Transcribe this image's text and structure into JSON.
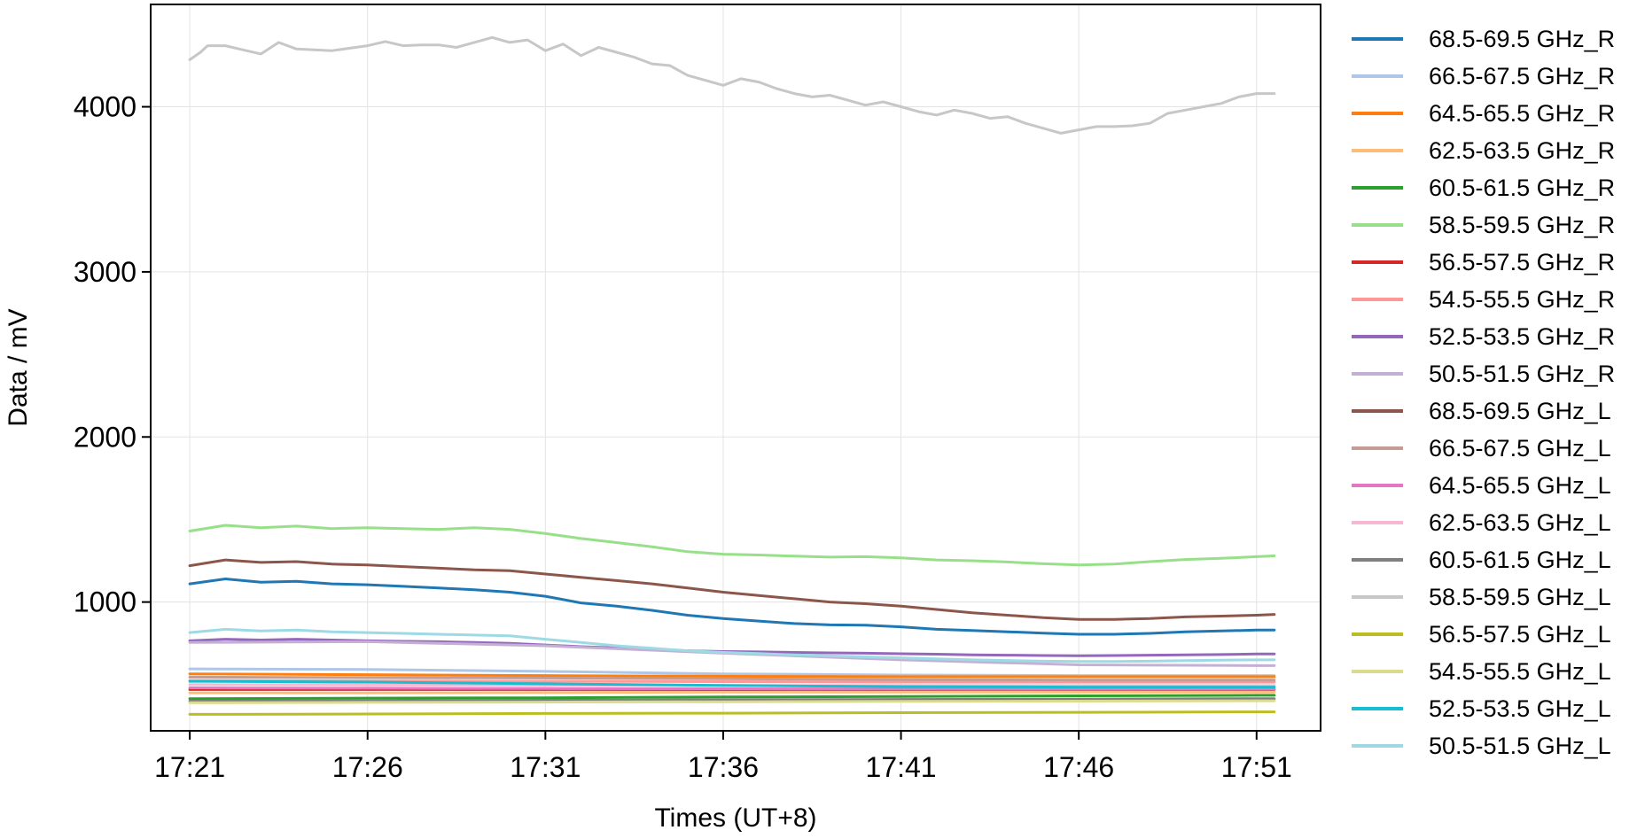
{
  "chart_data": {
    "type": "line",
    "title": "",
    "xlabel": "Times (UT+8)",
    "ylabel": "Data / mV",
    "x_ticks": [
      "17:21",
      "17:26",
      "17:31",
      "17:36",
      "17:41",
      "17:46",
      "17:51"
    ],
    "x_tick_minutes": [
      0,
      5,
      10,
      15,
      20,
      25,
      30
    ],
    "xlim_minutes": [
      -1.1,
      31.8
    ],
    "x_start_minutes": 0,
    "x_end_minutes": 30.5,
    "y_ticks": [
      1000,
      2000,
      3000,
      4000
    ],
    "ylim": [
      220,
      4620
    ],
    "grid": true,
    "legend_position": "outside-right",
    "series": [
      {
        "name": "68.5-69.5 GHz_R",
        "color": "#1f77b4",
        "x": [
          0,
          1,
          2,
          3,
          4,
          5,
          6,
          7,
          8,
          9,
          10,
          11,
          12,
          13,
          14,
          15,
          16,
          17,
          18,
          19,
          20,
          21,
          22,
          23,
          24,
          25,
          26,
          27,
          28,
          29,
          30,
          30.5
        ],
        "y": [
          1110,
          1140,
          1120,
          1125,
          1110,
          1105,
          1095,
          1085,
          1075,
          1060,
          1035,
          995,
          975,
          950,
          920,
          900,
          885,
          870,
          862,
          860,
          850,
          835,
          828,
          820,
          812,
          805,
          805,
          810,
          820,
          825,
          830,
          830
        ]
      },
      {
        "name": "66.5-67.5 GHz_R",
        "color": "#aec7e8",
        "x": [
          0,
          5,
          10,
          15,
          20,
          25,
          30,
          30.5
        ],
        "y": [
          595,
          592,
          580,
          565,
          558,
          555,
          555,
          555
        ]
      },
      {
        "name": "64.5-65.5 GHz_R",
        "color": "#ff7f0e",
        "x": [
          0,
          5,
          10,
          15,
          20,
          25,
          30,
          30.5
        ],
        "y": [
          565,
          560,
          555,
          550,
          548,
          548,
          548,
          548
        ]
      },
      {
        "name": "62.5-63.5 GHz_R",
        "color": "#ffbb78",
        "x": [
          0,
          5,
          10,
          15,
          20,
          25,
          30,
          30.5
        ],
        "y": [
          450,
          450,
          452,
          455,
          455,
          455,
          455,
          455
        ]
      },
      {
        "name": "60.5-61.5 GHz_R",
        "color": "#2ca02c",
        "x": [
          0,
          5,
          10,
          15,
          20,
          25,
          30,
          30.5
        ],
        "y": [
          415,
          418,
          420,
          425,
          428,
          432,
          435,
          435
        ]
      },
      {
        "name": "58.5-59.5 GHz_R",
        "color": "#98df8a",
        "x": [
          0,
          1,
          2,
          3,
          4,
          5,
          6,
          7,
          8,
          9,
          10,
          11,
          12,
          13,
          14,
          15,
          16,
          17,
          18,
          19,
          20,
          21,
          22,
          23,
          24,
          25,
          26,
          27,
          28,
          29,
          30,
          30.5
        ],
        "y": [
          1430,
          1465,
          1450,
          1460,
          1445,
          1450,
          1445,
          1440,
          1450,
          1440,
          1415,
          1385,
          1360,
          1335,
          1305,
          1290,
          1285,
          1278,
          1272,
          1275,
          1268,
          1255,
          1250,
          1243,
          1232,
          1225,
          1230,
          1245,
          1258,
          1265,
          1275,
          1280
        ]
      },
      {
        "name": "56.5-57.5 GHz_R",
        "color": "#d62728",
        "x": [
          0,
          5,
          10,
          15,
          20,
          25,
          30,
          30.5
        ],
        "y": [
          470,
          470,
          470,
          470,
          470,
          470,
          470,
          470
        ]
      },
      {
        "name": "54.5-55.5 GHz_R",
        "color": "#ff9896",
        "x": [
          0,
          5,
          10,
          15,
          20,
          25,
          30,
          30.5
        ],
        "y": [
          525,
          522,
          520,
          518,
          515,
          515,
          515,
          515
        ]
      },
      {
        "name": "52.5-53.5 GHz_R",
        "color": "#9467bd",
        "x": [
          0,
          1,
          2,
          3,
          4,
          5,
          6,
          7,
          8,
          9,
          10,
          11,
          12,
          13,
          14,
          15,
          16,
          17,
          18,
          19,
          20,
          21,
          22,
          23,
          24,
          25,
          26,
          27,
          28,
          29,
          30,
          30.5
        ],
        "y": [
          765,
          775,
          770,
          775,
          770,
          765,
          762,
          760,
          755,
          750,
          740,
          730,
          722,
          712,
          705,
          700,
          698,
          695,
          692,
          690,
          687,
          684,
          680,
          678,
          676,
          675,
          676,
          678,
          680,
          682,
          685,
          685
        ]
      },
      {
        "name": "50.5-51.5 GHz_R",
        "color": "#c5b0d5",
        "x": [
          0,
          5,
          10,
          15,
          20,
          25,
          30,
          30.5
        ],
        "y": [
          755,
          760,
          735,
          690,
          650,
          620,
          615,
          615
        ]
      },
      {
        "name": "68.5-69.5 GHz_L",
        "color": "#8c564b",
        "x": [
          0,
          1,
          2,
          3,
          4,
          5,
          6,
          7,
          8,
          9,
          10,
          11,
          12,
          13,
          14,
          15,
          16,
          17,
          18,
          19,
          20,
          21,
          22,
          23,
          24,
          25,
          26,
          27,
          28,
          29,
          30,
          30.5
        ],
        "y": [
          1220,
          1255,
          1240,
          1245,
          1230,
          1225,
          1215,
          1205,
          1195,
          1190,
          1170,
          1150,
          1130,
          1110,
          1085,
          1060,
          1040,
          1020,
          1000,
          990,
          975,
          955,
          935,
          920,
          905,
          895,
          895,
          900,
          910,
          915,
          920,
          925
        ]
      },
      {
        "name": "66.5-67.5 GHz_L",
        "color": "#c49c94",
        "x": [
          0,
          5,
          10,
          15,
          20,
          25,
          30,
          30.5
        ],
        "y": [
          545,
          542,
          540,
          535,
          530,
          528,
          528,
          528
        ]
      },
      {
        "name": "64.5-65.5 GHz_L",
        "color": "#e377c2",
        "x": [
          0,
          5,
          10,
          15,
          20,
          25,
          30,
          30.5
        ],
        "y": [
          480,
          478,
          476,
          475,
          474,
          473,
          473,
          473
        ]
      },
      {
        "name": "62.5-63.5 GHz_L",
        "color": "#f7b6d2",
        "x": [
          0,
          5,
          10,
          15,
          20,
          25,
          30,
          30.5
        ],
        "y": [
          500,
          498,
          496,
          495,
          494,
          494,
          494,
          494
        ]
      },
      {
        "name": "60.5-61.5 GHz_L",
        "color": "#7f7f7f",
        "x": [
          0,
          5,
          10,
          15,
          20,
          25,
          30,
          30.5
        ],
        "y": [
          400,
          402,
          405,
          408,
          410,
          412,
          415,
          415
        ]
      },
      {
        "name": "58.5-59.5 GHz_L",
        "color": "#c7c7c7",
        "x": [
          0,
          0.3,
          0.5,
          1,
          1.5,
          2,
          2.5,
          3,
          3.5,
          4,
          4.5,
          5,
          5.5,
          6,
          6.5,
          7,
          7.5,
          8,
          8.5,
          9,
          9.5,
          10,
          10.5,
          11,
          11.5,
          12,
          12.5,
          13,
          13.5,
          14,
          14.5,
          15,
          15.5,
          16,
          16.5,
          17,
          17.5,
          18,
          18.5,
          19,
          19.5,
          20,
          20.5,
          21,
          21.5,
          22,
          22.5,
          23,
          23.5,
          24,
          24.5,
          25,
          25.5,
          26,
          26.5,
          27,
          27.5,
          28,
          28.5,
          29,
          29.5,
          30,
          30.5
        ],
        "y": [
          4285,
          4330,
          4370,
          4370,
          4345,
          4320,
          4390,
          4350,
          4345,
          4340,
          4355,
          4370,
          4395,
          4370,
          4375,
          4375,
          4360,
          4390,
          4420,
          4390,
          4405,
          4340,
          4380,
          4310,
          4360,
          4330,
          4300,
          4260,
          4250,
          4190,
          4160,
          4130,
          4170,
          4150,
          4110,
          4080,
          4060,
          4070,
          4040,
          4010,
          4030,
          4000,
          3970,
          3950,
          3980,
          3960,
          3930,
          3940,
          3900,
          3870,
          3840,
          3860,
          3880,
          3880,
          3885,
          3900,
          3960,
          3980,
          4000,
          4020,
          4060,
          4080,
          4080
        ]
      },
      {
        "name": "56.5-57.5 GHz_L",
        "color": "#bcbd22",
        "x": [
          0,
          5,
          10,
          15,
          20,
          25,
          30,
          30.5
        ],
        "y": [
          320,
          322,
          325,
          327,
          330,
          332,
          335,
          335
        ]
      },
      {
        "name": "54.5-55.5 GHz_L",
        "color": "#dbdb8d",
        "x": [
          0,
          5,
          10,
          15,
          20,
          25,
          30,
          30.5
        ],
        "y": [
          390,
          392,
          394,
          396,
          398,
          400,
          402,
          402
        ]
      },
      {
        "name": "52.5-53.5 GHz_L",
        "color": "#17becf",
        "x": [
          0,
          5,
          10,
          15,
          20,
          25,
          30,
          30.5
        ],
        "y": [
          520,
          515,
          505,
          495,
          488,
          485,
          485,
          485
        ]
      },
      {
        "name": "50.5-51.5 GHz_L",
        "color": "#9edae5",
        "x": [
          0,
          1,
          2,
          3,
          4,
          5,
          6,
          7,
          8,
          9,
          10,
          11,
          12,
          13,
          14,
          15,
          16,
          17,
          18,
          19,
          20,
          21,
          22,
          23,
          24,
          25,
          26,
          27,
          28,
          29,
          30,
          30.5
        ],
        "y": [
          815,
          835,
          825,
          830,
          820,
          815,
          810,
          805,
          800,
          795,
          775,
          755,
          735,
          720,
          705,
          695,
          688,
          680,
          674,
          668,
          662,
          656,
          650,
          646,
          642,
          640,
          640,
          642,
          645,
          648,
          650,
          650
        ]
      }
    ]
  }
}
